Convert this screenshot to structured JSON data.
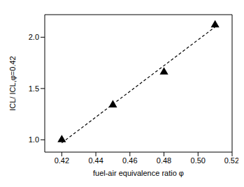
{
  "chart_data": {
    "type": "scatter",
    "x_label": "fuel-air equivalence ratio φ",
    "y_label": "ICL/ ICL,φ=0.42",
    "xlim": [
      0.41,
      0.52
    ],
    "xticks": [
      0.42,
      0.44,
      0.46,
      0.48,
      {
        "value": 0.5,
        "label": "0.50"
      },
      0.52
    ],
    "ylim": [
      0.88,
      2.22
    ],
    "yticks": [
      {
        "value": 1,
        "label": "1.0"
      },
      {
        "value": 1.5,
        "label": "1.5"
      },
      {
        "value": 2,
        "label": "2.0"
      }
    ],
    "grid": false,
    "series": [
      {
        "type": "scatter",
        "marker": "triangle",
        "color": "#000000",
        "x": [
          0.42,
          0.45,
          0.48,
          0.51
        ],
        "values": [
          1.0,
          1.34,
          1.66,
          2.12
        ]
      },
      {
        "type": "line",
        "line_style": "dashed",
        "color": "#000000",
        "x": [
          0.42,
          0.51
        ],
        "values": [
          0.97,
          2.1
        ]
      }
    ]
  }
}
